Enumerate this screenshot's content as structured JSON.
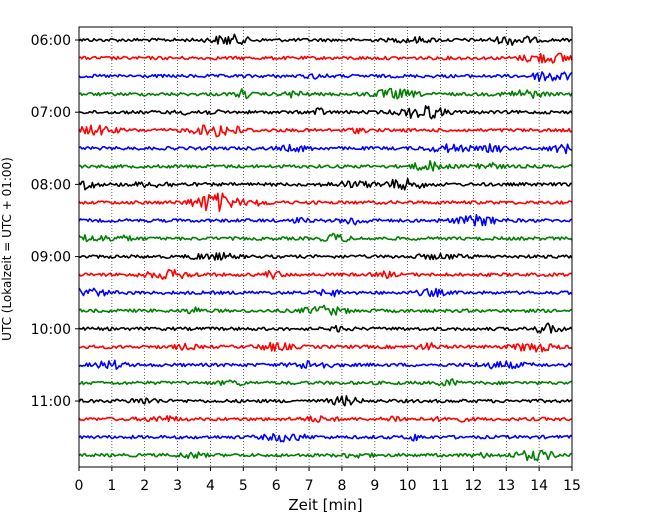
{
  "chart_data": {
    "type": "line",
    "title": "",
    "xlabel": "Zeit  [min]",
    "ylabel": "UTC (Lokalzeit = UTC + 01:00)",
    "xlim": [
      0,
      15
    ],
    "x_ticks": [
      "0",
      "1",
      "2",
      "3",
      "4",
      "5",
      "6",
      "7",
      "8",
      "9",
      "10",
      "11",
      "12",
      "13",
      "14",
      "15"
    ],
    "y_ticks": [
      "06:00",
      "07:00",
      "08:00",
      "09:00",
      "10:00",
      "11:00"
    ],
    "grid": "vertical dotted",
    "legend": "none",
    "trace_interval_minutes": 15,
    "traces": [
      {
        "start": "06:00",
        "color": "#000000"
      },
      {
        "start": "06:15",
        "color": "#ff0000"
      },
      {
        "start": "06:30",
        "color": "#0000ff"
      },
      {
        "start": "06:45",
        "color": "#008000"
      },
      {
        "start": "07:00",
        "color": "#000000"
      },
      {
        "start": "07:15",
        "color": "#ff0000"
      },
      {
        "start": "07:30",
        "color": "#0000ff"
      },
      {
        "start": "07:45",
        "color": "#008000"
      },
      {
        "start": "08:00",
        "color": "#000000"
      },
      {
        "start": "08:15",
        "color": "#ff0000"
      },
      {
        "start": "08:30",
        "color": "#0000ff"
      },
      {
        "start": "08:45",
        "color": "#008000"
      },
      {
        "start": "09:00",
        "color": "#000000"
      },
      {
        "start": "09:15",
        "color": "#ff0000"
      },
      {
        "start": "09:30",
        "color": "#0000ff"
      },
      {
        "start": "09:45",
        "color": "#008000"
      },
      {
        "start": "10:00",
        "color": "#000000"
      },
      {
        "start": "10:15",
        "color": "#ff0000"
      },
      {
        "start": "10:30",
        "color": "#0000ff"
      },
      {
        "start": "10:45",
        "color": "#008000"
      },
      {
        "start": "11:00",
        "color": "#000000"
      },
      {
        "start": "11:15",
        "color": "#ff0000"
      },
      {
        "start": "11:30",
        "color": "#0000ff"
      },
      {
        "start": "11:45",
        "color": "#008000"
      }
    ]
  }
}
